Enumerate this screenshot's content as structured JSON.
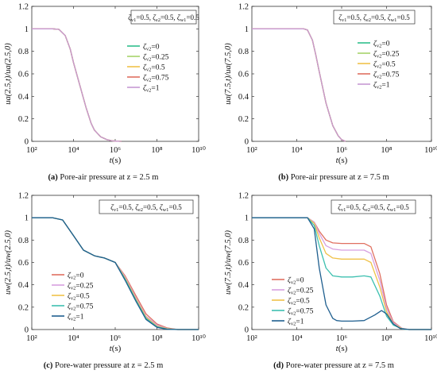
{
  "colors": {
    "zeta0": "#2fc08c",
    "zeta025": "#a7d46a",
    "zeta05": "#f0c24a",
    "zeta075": "#e07060",
    "zeta1": "#c69ad4"
  },
  "chart_data": [
    {
      "type": "line",
      "panel": "a",
      "caption_label": "(a)",
      "caption_text": "Pore-air pressure at z = 2.5 m",
      "box_label": "ζv1=0.5, ζe2=0.5, ζw1=0.5",
      "xlabel": "t(s)",
      "ylabel": "ua(2.5,t)/ua(2.5,0)",
      "xscale": "log",
      "xlim": [
        100,
        10000000000
      ],
      "ylim": [
        0,
        1.2
      ],
      "xticks": [
        "10²",
        "10⁴",
        "10⁶",
        "10⁸",
        "10¹⁰"
      ],
      "yticks": [
        "0",
        "0.2",
        "0.4",
        "0.6",
        "0.8",
        "1",
        "1.2"
      ],
      "legend_position": "right",
      "series": [
        {
          "name": "ζv2=0",
          "color": "#2fc08c",
          "x": [
            100,
            1000,
            2000,
            4000,
            7000,
            10000,
            20000,
            40000,
            70000,
            100000,
            200000,
            400000,
            700000,
            1000000,
            2000000
          ],
          "y": [
            1,
            1,
            0.995,
            0.94,
            0.82,
            0.7,
            0.5,
            0.3,
            0.16,
            0.1,
            0.04,
            0.015,
            0.005,
            0.002,
            0
          ]
        },
        {
          "name": "ζv2=0.25",
          "color": "#a7d46a",
          "x": [
            100,
            1000,
            2000,
            4000,
            7000,
            10000,
            20000,
            40000,
            70000,
            100000,
            200000,
            400000,
            700000,
            1000000,
            2000000
          ],
          "y": [
            1,
            1,
            0.995,
            0.94,
            0.82,
            0.7,
            0.5,
            0.3,
            0.16,
            0.1,
            0.04,
            0.015,
            0.005,
            0.002,
            0
          ]
        },
        {
          "name": "ζv2=0.5",
          "color": "#f0c24a",
          "x": [
            100,
            1000,
            2000,
            4000,
            7000,
            10000,
            20000,
            40000,
            70000,
            100000,
            200000,
            400000,
            700000,
            1000000,
            2000000
          ],
          "y": [
            1,
            1,
            0.995,
            0.94,
            0.82,
            0.7,
            0.5,
            0.3,
            0.16,
            0.1,
            0.04,
            0.015,
            0.005,
            0.002,
            0
          ]
        },
        {
          "name": "ζv2=0.75",
          "color": "#e07060",
          "x": [
            100,
            1000,
            2000,
            4000,
            7000,
            10000,
            20000,
            40000,
            70000,
            100000,
            200000,
            400000,
            700000,
            1000000,
            2000000
          ],
          "y": [
            1,
            1,
            0.995,
            0.94,
            0.82,
            0.7,
            0.5,
            0.3,
            0.16,
            0.1,
            0.04,
            0.015,
            0.005,
            0.002,
            0
          ]
        },
        {
          "name": "ζv2=1",
          "color": "#c69ad4",
          "x": [
            100,
            1000,
            2000,
            4000,
            7000,
            10000,
            20000,
            40000,
            70000,
            100000,
            200000,
            400000,
            700000,
            1000000,
            2000000
          ],
          "y": [
            1,
            1,
            0.995,
            0.94,
            0.82,
            0.7,
            0.5,
            0.3,
            0.16,
            0.1,
            0.04,
            0.015,
            0.005,
            0.002,
            0
          ]
        }
      ]
    },
    {
      "type": "line",
      "panel": "b",
      "caption_label": "(b)",
      "caption_text": "Pore-air pressure at z = 7.5 m",
      "box_label": "ζv1=0.5, ζe2=0.5, ζw1=0.5",
      "xlabel": "t(s)",
      "ylabel": "ua(7.5,t)/ua(7.5,0)",
      "xscale": "log",
      "xlim": [
        100,
        10000000000
      ],
      "ylim": [
        0,
        1.2
      ],
      "xticks": [
        "10²",
        "10⁴",
        "10⁶",
        "10⁸",
        "10¹⁰"
      ],
      "yticks": [
        "0",
        "0.2",
        "0.4",
        "0.6",
        "0.8",
        "1",
        "1.2"
      ],
      "legend_position": "right",
      "series": [
        {
          "name": "ζv2=0",
          "color": "#2fc08c",
          "x": [
            100,
            10000,
            20000,
            30000,
            50000,
            70000,
            100000,
            200000,
            400000,
            700000,
            1000000,
            1500000
          ],
          "y": [
            1,
            1,
            1,
            0.99,
            0.9,
            0.77,
            0.62,
            0.34,
            0.14,
            0.05,
            0.015,
            0
          ]
        },
        {
          "name": "ζv2=0.25",
          "color": "#a7d46a",
          "x": [
            100,
            10000,
            20000,
            30000,
            50000,
            70000,
            100000,
            200000,
            400000,
            700000,
            1000000,
            1500000
          ],
          "y": [
            1,
            1,
            1,
            0.99,
            0.9,
            0.77,
            0.62,
            0.34,
            0.14,
            0.05,
            0.015,
            0
          ]
        },
        {
          "name": "ζv2=0.5",
          "color": "#f0c24a",
          "x": [
            100,
            10000,
            20000,
            30000,
            50000,
            70000,
            100000,
            200000,
            400000,
            700000,
            1000000,
            1500000
          ],
          "y": [
            1,
            1,
            1,
            0.99,
            0.9,
            0.77,
            0.62,
            0.34,
            0.14,
            0.05,
            0.015,
            0
          ]
        },
        {
          "name": "ζv2=0.75",
          "color": "#e07060",
          "x": [
            100,
            10000,
            20000,
            30000,
            50000,
            70000,
            100000,
            200000,
            400000,
            700000,
            1000000,
            1500000
          ],
          "y": [
            1,
            1,
            1,
            0.99,
            0.9,
            0.77,
            0.62,
            0.34,
            0.14,
            0.05,
            0.015,
            0
          ]
        },
        {
          "name": "ζv2=1",
          "color": "#c69ad4",
          "x": [
            100,
            10000,
            20000,
            30000,
            50000,
            70000,
            100000,
            200000,
            400000,
            700000,
            1000000,
            1500000
          ],
          "y": [
            1,
            1,
            1,
            0.99,
            0.9,
            0.77,
            0.62,
            0.34,
            0.14,
            0.05,
            0.015,
            0
          ]
        }
      ]
    },
    {
      "type": "line",
      "panel": "c",
      "caption_label": "(c)",
      "caption_text": "Pore-water pressure at z = 2.5 m",
      "box_label": "ζv1=0.5, ζe2=0.5, ζw1=0.5",
      "xlabel": "t(s)",
      "ylabel": "uw(2.5,t)/uw(2.5,0)",
      "xscale": "log",
      "xlim": [
        100,
        10000000000
      ],
      "ylim": [
        0,
        1.2
      ],
      "xticks": [
        "10²",
        "10⁴",
        "10⁶",
        "10⁸",
        "10¹⁰"
      ],
      "yticks": [
        "0",
        "0.2",
        "0.4",
        "0.6",
        "0.8",
        "1",
        "1.2"
      ],
      "legend_position": "left",
      "series": [
        {
          "name": "ζv2=0",
          "color": "#e07060",
          "x": [
            100,
            1000,
            3000,
            10000,
            30000,
            100000,
            300000,
            1000000,
            3000000,
            10000000,
            30000000,
            100000000,
            300000000,
            1000000000,
            10000000000
          ],
          "y": [
            1,
            1,
            0.98,
            0.84,
            0.71,
            0.66,
            0.64,
            0.6,
            0.48,
            0.3,
            0.14,
            0.05,
            0.015,
            0,
            0
          ]
        },
        {
          "name": "ζv2=0.25",
          "color": "#d7a0e0",
          "x": [
            100,
            1000,
            3000,
            10000,
            30000,
            100000,
            300000,
            1000000,
            3000000,
            10000000,
            30000000,
            100000000,
            300000000,
            1000000000,
            10000000000
          ],
          "y": [
            1,
            1,
            0.98,
            0.84,
            0.71,
            0.66,
            0.64,
            0.6,
            0.47,
            0.28,
            0.12,
            0.04,
            0.01,
            0,
            0
          ]
        },
        {
          "name": "ζv2=0.5",
          "color": "#f0c24a",
          "x": [
            100,
            1000,
            3000,
            10000,
            30000,
            100000,
            300000,
            1000000,
            3000000,
            10000000,
            30000000,
            100000000,
            300000000,
            1000000000,
            10000000000
          ],
          "y": [
            1,
            1,
            0.98,
            0.84,
            0.71,
            0.66,
            0.64,
            0.6,
            0.46,
            0.27,
            0.11,
            0.03,
            0.008,
            0,
            0
          ]
        },
        {
          "name": "ζv2=0.75",
          "color": "#3ec0b0",
          "x": [
            100,
            1000,
            3000,
            10000,
            30000,
            100000,
            300000,
            1000000,
            3000000,
            10000000,
            30000000,
            100000000,
            300000000,
            1000000000,
            10000000000
          ],
          "y": [
            1,
            1,
            0.98,
            0.84,
            0.71,
            0.66,
            0.64,
            0.6,
            0.45,
            0.26,
            0.1,
            0.025,
            0.005,
            0,
            0
          ]
        },
        {
          "name": "ζv2=1",
          "color": "#1f5f8f",
          "x": [
            100,
            1000,
            3000,
            10000,
            30000,
            100000,
            300000,
            1000000,
            3000000,
            10000000,
            30000000,
            100000000,
            300000000,
            1000000000,
            10000000000
          ],
          "y": [
            1,
            1,
            0.98,
            0.84,
            0.71,
            0.66,
            0.64,
            0.6,
            0.44,
            0.25,
            0.09,
            0.02,
            0.003,
            0,
            0
          ]
        }
      ]
    },
    {
      "type": "line",
      "panel": "d",
      "caption_label": "(d)",
      "caption_text": "Pore-water pressure at z = 7.5 m",
      "box_label": "ζv1=0.5, ζe2=0.5, ζw1=0.5",
      "xlabel": "t(s)",
      "ylabel": "uw(7.5,t)/uw(7.5,0)",
      "xscale": "log",
      "xlim": [
        100,
        10000000000
      ],
      "ylim": [
        0,
        1.2
      ],
      "xticks": [
        "10²",
        "10⁴",
        "10⁶",
        "10⁸",
        "10¹⁰"
      ],
      "yticks": [
        "0",
        "0.2",
        "0.4",
        "0.6",
        "0.8",
        "1",
        "1.2"
      ],
      "legend_position": "left",
      "series": [
        {
          "name": "ζv2=0",
          "color": "#e07060",
          "x": [
            100,
            10000,
            30000,
            60000,
            100000,
            200000,
            400000,
            1000000,
            3000000,
            10000000,
            20000000,
            50000000,
            100000000,
            200000000,
            500000000,
            1000000000,
            10000000000
          ],
          "y": [
            1,
            1,
            1,
            0.96,
            0.88,
            0.8,
            0.775,
            0.77,
            0.77,
            0.77,
            0.74,
            0.5,
            0.22,
            0.07,
            0.01,
            0,
            0
          ]
        },
        {
          "name": "ζv2=0.25",
          "color": "#d7a0e0",
          "x": [
            100,
            10000,
            30000,
            60000,
            100000,
            200000,
            400000,
            1000000,
            3000000,
            10000000,
            20000000,
            50000000,
            100000000,
            200000000,
            500000000,
            1000000000,
            10000000000
          ],
          "y": [
            1,
            1,
            1,
            0.96,
            0.86,
            0.75,
            0.72,
            0.71,
            0.71,
            0.71,
            0.68,
            0.44,
            0.19,
            0.06,
            0.01,
            0,
            0
          ]
        },
        {
          "name": "ζv2=0.5",
          "color": "#f0c24a",
          "x": [
            100,
            10000,
            30000,
            60000,
            100000,
            200000,
            400000,
            1000000,
            3000000,
            10000000,
            20000000,
            50000000,
            100000000,
            200000000,
            500000000,
            1000000000,
            10000000000
          ],
          "y": [
            1,
            1,
            1,
            0.95,
            0.82,
            0.68,
            0.64,
            0.63,
            0.63,
            0.63,
            0.6,
            0.38,
            0.16,
            0.05,
            0.008,
            0,
            0
          ]
        },
        {
          "name": "ζv2=0.75",
          "color": "#3ec0b0",
          "x": [
            100,
            10000,
            30000,
            60000,
            100000,
            200000,
            400000,
            1000000,
            3000000,
            10000000,
            20000000,
            50000000,
            100000000,
            200000000,
            500000000,
            1000000000,
            10000000000
          ],
          "y": [
            1,
            1,
            1,
            0.93,
            0.75,
            0.55,
            0.48,
            0.47,
            0.47,
            0.48,
            0.47,
            0.3,
            0.12,
            0.04,
            0.005,
            0,
            0
          ]
        },
        {
          "name": "ζv2=1",
          "color": "#1f5f8f",
          "x": [
            100,
            10000,
            30000,
            60000,
            100000,
            200000,
            400000,
            600000,
            1000000,
            3000000,
            10000000,
            30000000,
            60000000,
            100000000,
            200000000,
            400000000,
            1000000000,
            10000000000
          ],
          "y": [
            1,
            1,
            1,
            0.9,
            0.55,
            0.22,
            0.1,
            0.08,
            0.075,
            0.075,
            0.08,
            0.13,
            0.17,
            0.14,
            0.05,
            0.01,
            0,
            0
          ]
        }
      ]
    }
  ]
}
